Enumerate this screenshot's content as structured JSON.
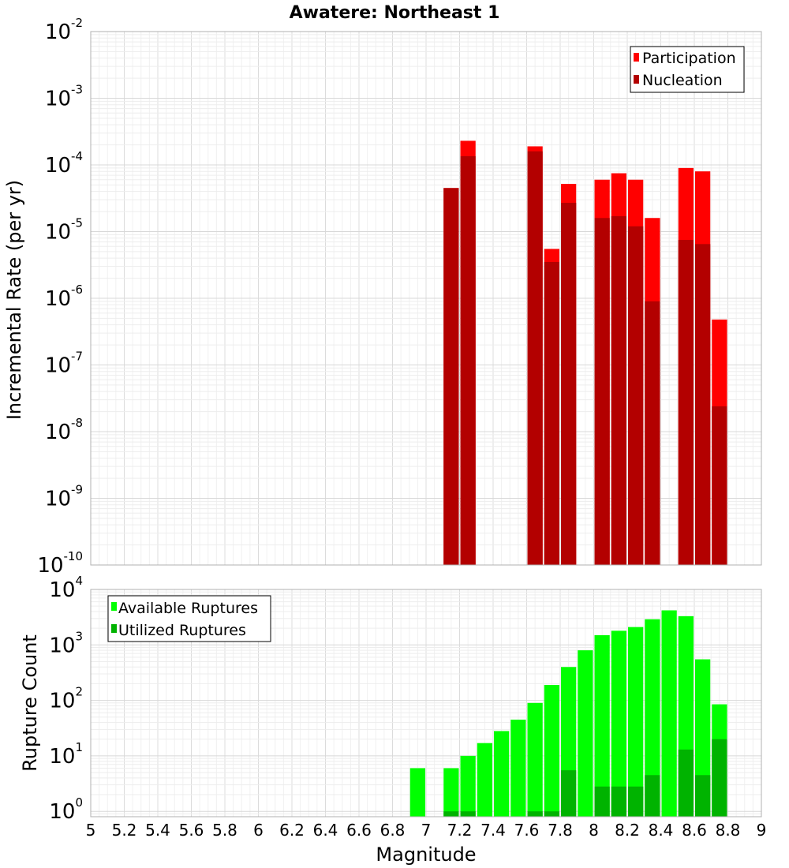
{
  "chart_title": "Awatere: Northeast 1",
  "chart_data": [
    {
      "type": "bar",
      "title": "Awatere: Northeast 1",
      "xlabel": "Magnitude",
      "ylabel": "Incremental Rate (per yr)",
      "ylog": true,
      "xlim": [
        5,
        9
      ],
      "ylim": [
        1e-10,
        0.01
      ],
      "bin_width": 0.1,
      "y_ticks": [
        {
          "base": "10",
          "exp": "-10",
          "value": 1e-10
        },
        {
          "base": "10",
          "exp": "-9",
          "value": 1e-09
        },
        {
          "base": "10",
          "exp": "-8",
          "value": 1e-08
        },
        {
          "base": "10",
          "exp": "-7",
          "value": 1e-07
        },
        {
          "base": "10",
          "exp": "-6",
          "value": 1e-06
        },
        {
          "base": "10",
          "exp": "-5",
          "value": 1e-05
        },
        {
          "base": "10",
          "exp": "-4",
          "value": 0.0001
        },
        {
          "base": "10",
          "exp": "-3",
          "value": 0.001
        },
        {
          "base": "10",
          "exp": "-2",
          "value": 0.01
        }
      ],
      "legend_position": "top-right",
      "series": [
        {
          "name": "Participation",
          "color": "#ff0000",
          "x": [
            7.15,
            7.25,
            7.65,
            7.75,
            7.85,
            8.05,
            8.15,
            8.25,
            8.35,
            8.55,
            8.65,
            8.75
          ],
          "values": [
            4.5e-05,
            0.00023,
            0.00019,
            5.5e-06,
            5.2e-05,
            6e-05,
            7.5e-05,
            6e-05,
            1.6e-05,
            9e-05,
            8e-05,
            4.8e-07
          ]
        },
        {
          "name": "Nucleation",
          "color": "#b30000",
          "x": [
            7.15,
            7.25,
            7.65,
            7.75,
            7.85,
            8.05,
            8.15,
            8.25,
            8.35,
            8.55,
            8.65,
            8.75
          ],
          "values": [
            4.5e-05,
            0.000135,
            0.00016,
            3.5e-06,
            2.7e-05,
            1.6e-05,
            1.7e-05,
            1.2e-05,
            9e-07,
            7.5e-06,
            6.5e-06,
            2.4e-08
          ]
        }
      ]
    },
    {
      "type": "bar",
      "xlabel": "Magnitude",
      "ylabel": "Rupture Count",
      "ylog": true,
      "xlim": [
        5,
        9
      ],
      "ylim": [
        0.8,
        10000.0
      ],
      "bin_width": 0.1,
      "x_ticks": [
        "5",
        "5.2",
        "5.4",
        "5.6",
        "5.8",
        "6",
        "6.2",
        "6.4",
        "6.6",
        "6.8",
        "7",
        "7.2",
        "7.4",
        "7.6",
        "7.8",
        "8",
        "8.2",
        "8.4",
        "8.6",
        "8.8",
        "9"
      ],
      "y_ticks": [
        {
          "base": "10",
          "exp": "0",
          "value": 1
        },
        {
          "base": "10",
          "exp": "1",
          "value": 10
        },
        {
          "base": "10",
          "exp": "2",
          "value": 100
        },
        {
          "base": "10",
          "exp": "3",
          "value": 1000
        },
        {
          "base": "10",
          "exp": "4",
          "value": 10000
        }
      ],
      "legend_position": "top-left",
      "series": [
        {
          "name": "Available Ruptures",
          "color": "#00ff00",
          "x": [
            6.95,
            7.15,
            7.25,
            7.35,
            7.45,
            7.55,
            7.65,
            7.75,
            7.85,
            7.95,
            8.05,
            8.15,
            8.25,
            8.35,
            8.45,
            8.55,
            8.65,
            8.75
          ],
          "values": [
            6,
            6,
            10,
            17,
            28,
            45,
            90,
            190,
            400,
            800,
            1500,
            1800,
            2100,
            2900,
            4200,
            3300,
            550,
            85
          ]
        },
        {
          "name": "Utilized Ruptures",
          "color": "#00b300",
          "x": [
            7.15,
            7.25,
            7.65,
            7.75,
            7.85,
            8.05,
            8.15,
            8.25,
            8.35,
            8.55,
            8.65,
            8.75
          ],
          "values": [
            1,
            1,
            1,
            1,
            5.5,
            2.8,
            2.8,
            2.8,
            4.5,
            13,
            4.5,
            20
          ]
        }
      ]
    }
  ]
}
